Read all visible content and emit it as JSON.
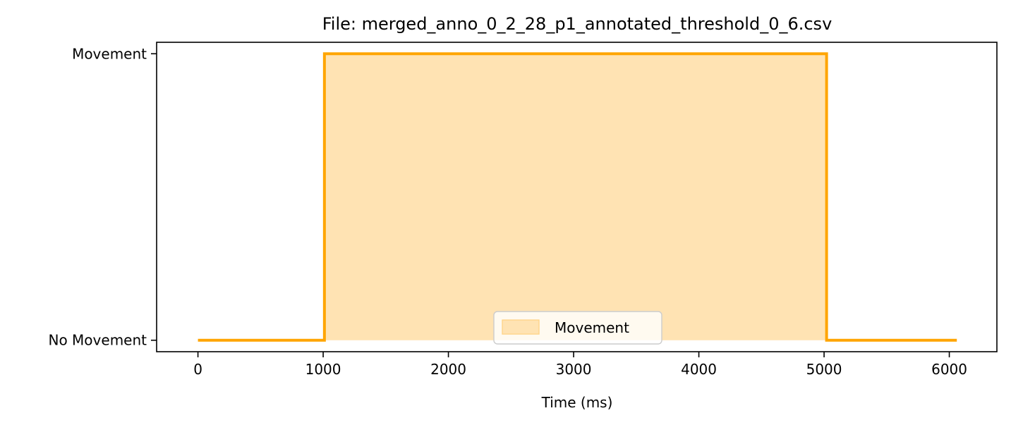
{
  "chart_data": {
    "type": "area",
    "title": "File: merged_anno_0_2_28_p1_annotated_threshold_0_6.csv",
    "xlabel": "Time (ms)",
    "ylabel": "",
    "xlim": [
      -330,
      6380
    ],
    "ylim": [
      -0.04,
      1.04
    ],
    "x_ticks": [
      0,
      1000,
      2000,
      3000,
      4000,
      5000,
      6000
    ],
    "x_tick_labels": [
      "0",
      "1000",
      "2000",
      "3000",
      "4000",
      "5000",
      "6000"
    ],
    "y_ticks": [
      0,
      1
    ],
    "y_tick_labels": [
      "No Movement",
      "Movement"
    ],
    "grid": false,
    "legend_position": "bottom-center",
    "series": [
      {
        "name": "Movement",
        "color": "#FFA500",
        "fill_color": "#FFE3B3",
        "x": [
          0,
          1010,
          1010,
          5020,
          5020,
          6060
        ],
        "y": [
          0,
          0,
          1,
          1,
          0,
          0
        ]
      }
    ]
  }
}
